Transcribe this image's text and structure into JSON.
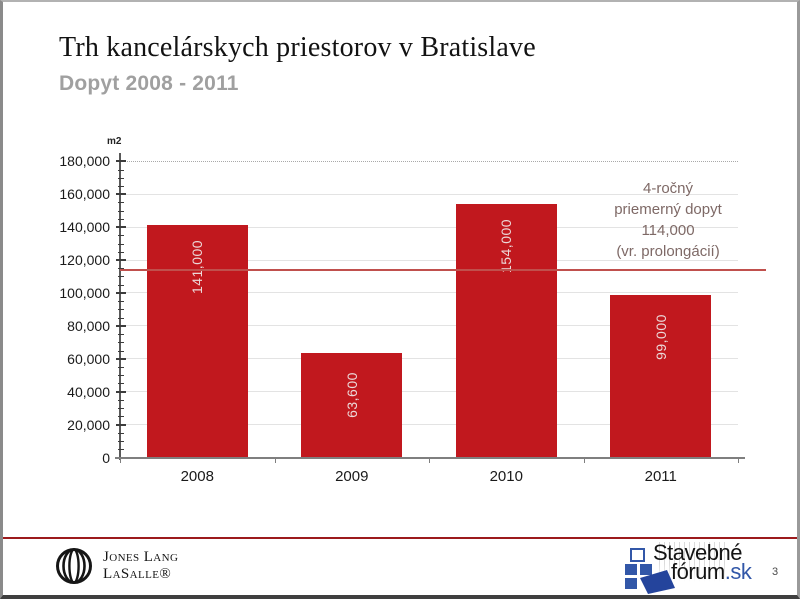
{
  "slide": {
    "title": "Trh kancelárskych priestorov v Bratislave",
    "subtitle": "Dopyt 2008 - 2011",
    "page_number": "3"
  },
  "chart_data": {
    "type": "bar",
    "title": "",
    "unit_label": "m2",
    "categories": [
      "2008",
      "2009",
      "2010",
      "2011"
    ],
    "values": [
      141000,
      63600,
      154000,
      99000
    ],
    "value_labels": [
      "141,000",
      "63,600",
      "154,000",
      "99,000"
    ],
    "ylim": [
      0,
      180000
    ],
    "ytick_step": 20000,
    "ytick_minor_step": 5000,
    "ytick_labels": [
      "0",
      "20,000",
      "40,000",
      "60,000",
      "80,000",
      "100,000",
      "120,000",
      "140,000",
      "160,000",
      "180,000"
    ],
    "grid": true,
    "legend": "none",
    "bar_color": "#c1181e",
    "bar_label_color": "#ecd9d9",
    "average_line": {
      "value": 114000,
      "color": "#c0504d",
      "annotation_lines": [
        "4-ročný",
        "priemerný dopyt",
        "114,000",
        "(vr. prolongácií)"
      ],
      "annotation_color": "#7e6966"
    }
  },
  "footer": {
    "jll": {
      "line1": "Jones Lang",
      "line2": "LaSalle®"
    },
    "stavebne_forum": {
      "word1": "Stavebné",
      "word2": "fórum",
      "tld": ".sk"
    }
  }
}
